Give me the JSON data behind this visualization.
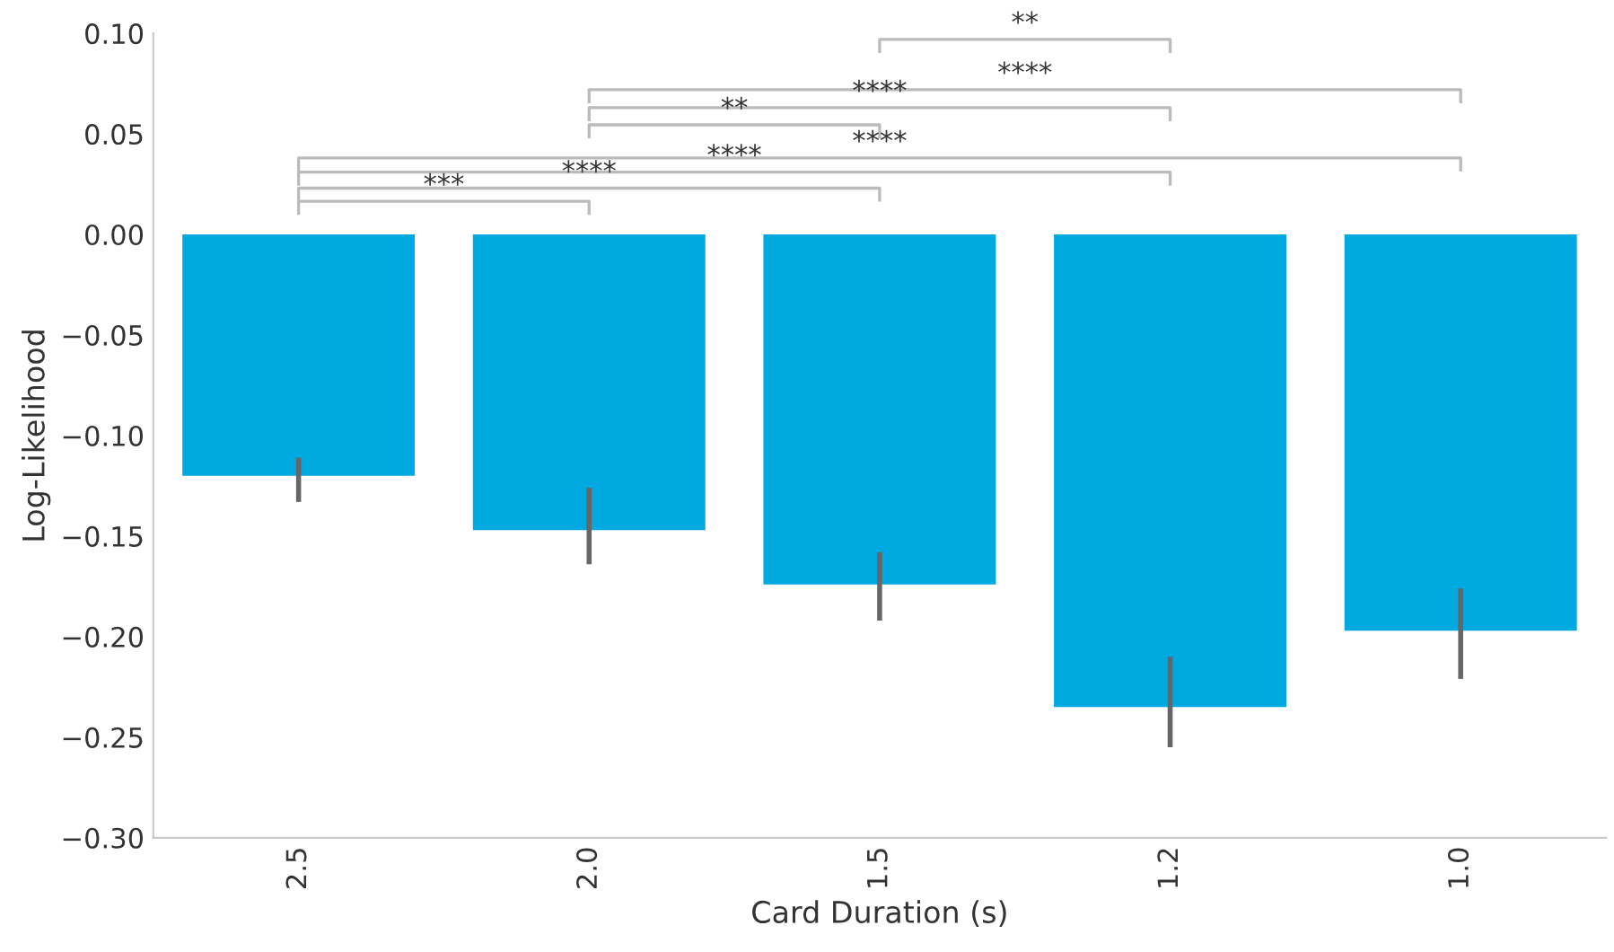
{
  "chart_data": {
    "type": "bar",
    "xlabel": "Card Duration (s)",
    "ylabel": "Log-Likelihood",
    "categories": [
      "2.5",
      "2.0",
      "1.5",
      "1.2",
      "1.0"
    ],
    "values": [
      -0.12,
      -0.147,
      -0.174,
      -0.235,
      -0.197
    ],
    "errors": [
      [
        -0.133,
        -0.111
      ],
      [
        -0.164,
        -0.126
      ],
      [
        -0.192,
        -0.158
      ],
      [
        -0.255,
        -0.21
      ],
      [
        -0.221,
        -0.176
      ]
    ],
    "color": "#00a9e0",
    "ylim": [
      -0.3,
      0.1
    ],
    "yticks": [
      {
        "value": -0.3,
        "label": "−0.30"
      },
      {
        "value": -0.25,
        "label": "−0.25"
      },
      {
        "value": -0.2,
        "label": "−0.20"
      },
      {
        "value": -0.15,
        "label": "−0.15"
      },
      {
        "value": -0.1,
        "label": "−0.10"
      },
      {
        "value": -0.05,
        "label": "−0.05"
      },
      {
        "value": 0.0,
        "label": "0.00"
      },
      {
        "value": 0.05,
        "label": "0.05"
      },
      {
        "value": 0.1,
        "label": "0.10"
      }
    ],
    "annotations": [
      "***",
      "****",
      "****",
      "****",
      "**",
      "****",
      "****",
      "**"
    ]
  }
}
